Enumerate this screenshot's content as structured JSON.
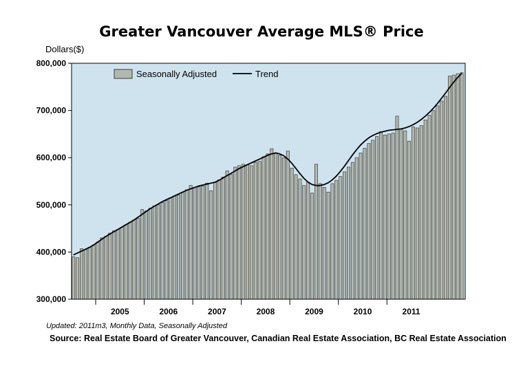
{
  "chart_data": {
    "type": "bar",
    "title": "Greater Vancouver Average MLS® Price",
    "ylabel": "Dollars($)",
    "ylim": [
      300000,
      800000
    ],
    "y_ticks": [
      300000,
      400000,
      500000,
      600000,
      700000,
      800000
    ],
    "y_tick_labels": [
      "300,000",
      "400,000",
      "500,000",
      "600,000",
      "700,000",
      "800,000"
    ],
    "x_start": "2004-07",
    "x_end": "2011-03",
    "x_year_labels": [
      "2005",
      "2006",
      "2007",
      "2008",
      "2009",
      "2010",
      "2011"
    ],
    "grid": false,
    "legend_position": "top-left",
    "colors": {
      "plot_bg": "#cfe3ef",
      "bar_fill": "#b3b8ae",
      "bar_stroke": "#3a3a3a",
      "trend": "#000000"
    },
    "series": [
      {
        "name": "Seasonally Adjusted",
        "kind": "bar",
        "values": [
          390000,
          388000,
          407000,
          405000,
          410000,
          415000,
          421000,
          430000,
          433000,
          440000,
          445000,
          448000,
          452000,
          458000,
          463000,
          468000,
          471000,
          490000,
          487000,
          493000,
          498000,
          500000,
          505000,
          509000,
          515000,
          519000,
          521000,
          527000,
          532000,
          541000,
          537000,
          538000,
          540000,
          546000,
          530000,
          548000,
          553000,
          559000,
          572000,
          565000,
          580000,
          583000,
          586000,
          585000,
          583000,
          590000,
          592000,
          602000,
          608000,
          619000,
          610000,
          605000,
          600000,
          614000,
          578000,
          564000,
          555000,
          541000,
          548000,
          525000,
          586000,
          545000,
          537000,
          527000,
          545000,
          552000,
          560000,
          570000,
          580000,
          590000,
          600000,
          610000,
          620000,
          630000,
          637000,
          645000,
          655000,
          648000,
          650000,
          652000,
          688000,
          660000,
          657000,
          635000,
          665000,
          663000,
          668000,
          680000,
          690000,
          700000,
          710000,
          720000,
          730000,
          773000,
          775000,
          778000,
          780000
        ]
      },
      {
        "name": "Trend",
        "kind": "line",
        "values": [
          394000,
          398000,
          402000,
          406000,
          410000,
          415000,
          421000,
          427000,
          433000,
          438000,
          443000,
          448000,
          453000,
          458000,
          463000,
          468000,
          474000,
          480000,
          486000,
          492000,
          497000,
          502000,
          507000,
          511000,
          515000,
          519000,
          523000,
          527000,
          531000,
          534000,
          537000,
          540000,
          542000,
          544000,
          546000,
          548000,
          552000,
          557000,
          562000,
          567000,
          572000,
          577000,
          581000,
          585000,
          589000,
          593000,
          597000,
          601000,
          605000,
          608000,
          610000,
          608000,
          604000,
          597000,
          588000,
          577000,
          566000,
          556000,
          548000,
          543000,
          541000,
          541000,
          543000,
          547000,
          553000,
          561000,
          571000,
          582000,
          594000,
          606000,
          617000,
          627000,
          635000,
          642000,
          647000,
          651000,
          654000,
          656000,
          658000,
          659000,
          660000,
          661000,
          663000,
          666000,
          670000,
          675000,
          681000,
          688000,
          696000,
          705000,
          715000,
          726000,
          737000,
          749000,
          760000,
          770000,
          779000
        ]
      }
    ]
  },
  "footnote": "Updated: 2011m3, Monthly Data, Seasonally Adjusted",
  "source": "Source: Real Estate Board of Greater Vancouver, Canadian Real Estate Association, BC Real Estate Association"
}
